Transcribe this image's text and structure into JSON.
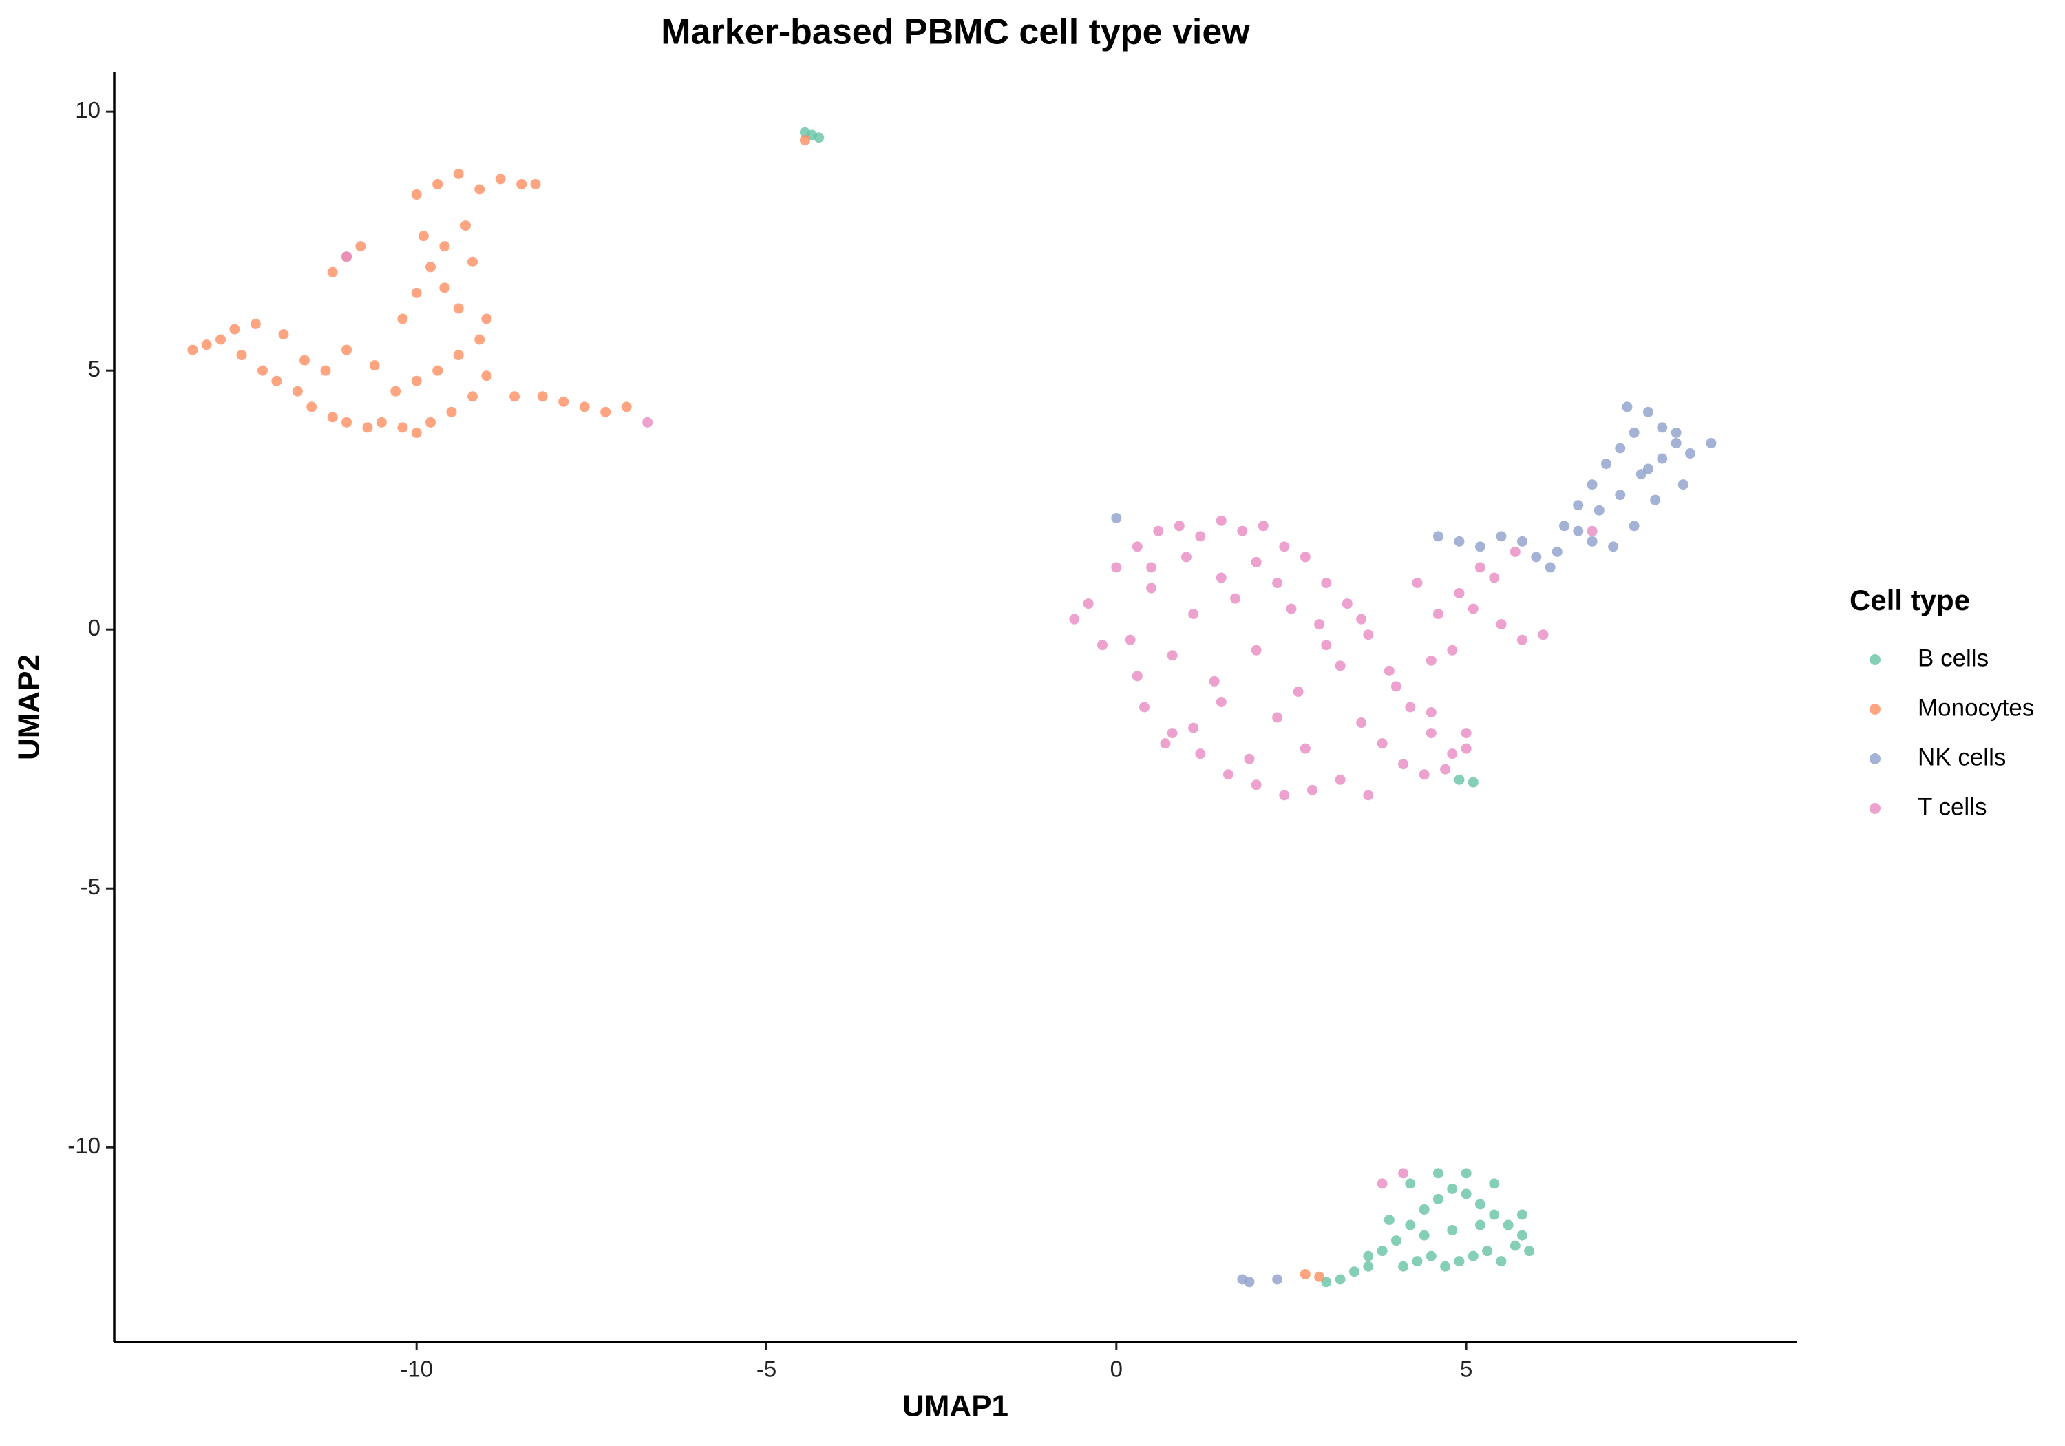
{
  "chart_data": {
    "type": "scatter",
    "title": "Marker-based PBMC cell type view",
    "x_label": "UMAP1",
    "y_label": "UMAP2",
    "legend_title": "Cell type",
    "legend": "right",
    "grid": false,
    "xlim": [
      -14.32,
      9.73
    ],
    "ylim": [
      -13.76,
      10.76
    ],
    "xticks": [
      -10,
      -5,
      0,
      5
    ],
    "yticks": [
      -10,
      -5,
      0,
      5,
      10
    ],
    "series": [
      {
        "name": "B cells",
        "color": "#66c2a5",
        "x": [
          -4.45,
          -4.35,
          -4.25,
          4.9,
          5.1,
          3.0,
          3.2,
          3.4,
          3.6,
          3.8,
          4.0,
          4.2,
          4.4,
          4.6,
          4.8,
          5.0,
          5.2,
          5.4,
          5.6,
          5.8,
          5.9,
          4.1,
          4.3,
          4.5,
          4.7,
          4.9,
          5.1,
          5.3,
          5.5,
          5.7,
          3.9,
          4.2,
          4.6,
          5.0,
          5.4,
          5.8,
          4.4,
          4.8,
          5.2,
          3.6
        ],
        "values": [
          9.6,
          9.55,
          9.5,
          -2.9,
          -2.95,
          -12.6,
          -12.55,
          -12.4,
          -12.3,
          -12.0,
          -11.8,
          -11.5,
          -11.2,
          -11.0,
          -10.8,
          -10.9,
          -11.1,
          -11.3,
          -11.5,
          -11.7,
          -12.0,
          -12.3,
          -12.2,
          -12.1,
          -12.3,
          -12.2,
          -12.1,
          -12.0,
          -12.2,
          -11.9,
          -11.4,
          -10.7,
          -10.5,
          -10.5,
          -10.7,
          -11.3,
          -11.7,
          -11.6,
          -11.5,
          -12.1
        ]
      },
      {
        "name": "Monocytes",
        "color": "#fc8d62",
        "x": [
          -13.2,
          -13.0,
          -12.8,
          -12.5,
          -12.2,
          -12.0,
          -11.7,
          -11.5,
          -11.2,
          -11.0,
          -10.7,
          -10.5,
          -10.2,
          -10.0,
          -9.8,
          -9.5,
          -9.2,
          -9.0,
          -12.6,
          -12.3,
          -11.9,
          -11.6,
          -11.3,
          -11.0,
          -10.6,
          -10.3,
          -10.0,
          -9.7,
          -9.4,
          -9.1,
          -10.2,
          -10.0,
          -9.8,
          -9.6,
          -9.4,
          -9.2,
          -9.0,
          -9.9,
          -9.6,
          -9.3,
          -10.0,
          -9.7,
          -9.4,
          -9.1,
          -8.8,
          -8.5,
          -8.3,
          -8.6,
          -8.2,
          -7.9,
          -7.6,
          -7.3,
          -7.0,
          -11.2,
          -11.0,
          -10.8,
          -4.45,
          2.7,
          2.9
        ],
        "values": [
          5.4,
          5.5,
          5.6,
          5.3,
          5.0,
          4.8,
          4.6,
          4.3,
          4.1,
          4.0,
          3.9,
          4.0,
          3.9,
          3.8,
          4.0,
          4.2,
          4.5,
          4.9,
          5.8,
          5.9,
          5.7,
          5.2,
          5.0,
          5.4,
          5.1,
          4.6,
          4.8,
          5.0,
          5.3,
          5.6,
          6.0,
          6.5,
          7.0,
          6.6,
          6.2,
          7.1,
          6.0,
          7.6,
          7.4,
          7.8,
          8.4,
          8.6,
          8.8,
          8.5,
          8.7,
          8.6,
          8.6,
          4.5,
          4.5,
          4.4,
          4.3,
          4.2,
          4.3,
          6.9,
          7.2,
          7.4,
          9.45,
          -12.45,
          -12.5
        ]
      },
      {
        "name": "NK cells",
        "color": "#8da0cb",
        "x": [
          0.0,
          4.6,
          4.9,
          5.2,
          5.5,
          5.8,
          6.0,
          6.2,
          6.4,
          6.6,
          6.8,
          7.0,
          7.2,
          7.4,
          7.6,
          7.8,
          8.0,
          8.2,
          8.5,
          6.3,
          6.6,
          6.9,
          7.2,
          7.5,
          7.8,
          8.1,
          6.8,
          7.1,
          7.4,
          7.7,
          8.0,
          7.3,
          7.6,
          1.8,
          1.9,
          2.3
        ],
        "values": [
          2.15,
          1.8,
          1.7,
          1.6,
          1.8,
          1.7,
          1.4,
          1.2,
          2.0,
          2.4,
          2.8,
          3.2,
          3.5,
          3.8,
          4.2,
          3.9,
          3.6,
          3.4,
          3.6,
          1.5,
          1.9,
          2.3,
          2.6,
          3.0,
          3.3,
          2.8,
          1.7,
          1.6,
          2.0,
          2.5,
          3.8,
          4.3,
          3.1,
          -12.55,
          -12.6,
          -12.55
        ]
      },
      {
        "name": "T cells",
        "color": "#e78ac3",
        "x": [
          -0.6,
          -0.4,
          -0.2,
          0.0,
          0.3,
          0.6,
          0.9,
          1.2,
          1.5,
          1.8,
          2.1,
          2.4,
          2.7,
          3.0,
          3.3,
          3.6,
          3.9,
          4.2,
          4.5,
          4.8,
          5.0,
          0.2,
          0.5,
          0.8,
          1.1,
          1.4,
          1.7,
          2.0,
          2.3,
          2.6,
          2.9,
          3.2,
          3.5,
          3.8,
          4.1,
          4.4,
          4.7,
          0.4,
          0.8,
          1.2,
          1.6,
          2.0,
          2.4,
          2.8,
          3.2,
          3.6,
          0.5,
          1.0,
          1.5,
          2.0,
          2.5,
          3.0,
          3.5,
          4.0,
          4.5,
          5.0,
          0.3,
          0.7,
          1.1,
          1.5,
          1.9,
          2.3,
          2.7,
          4.3,
          4.6,
          4.9,
          5.2,
          5.5,
          5.8,
          6.1,
          4.5,
          4.8,
          5.1,
          5.4,
          5.7,
          -11.0,
          -6.7,
          6.8,
          3.8,
          4.1
        ],
        "values": [
          0.2,
          0.5,
          -0.3,
          1.2,
          1.6,
          1.9,
          2.0,
          1.8,
          2.1,
          1.9,
          2.0,
          1.6,
          1.4,
          0.9,
          0.5,
          -0.1,
          -0.8,
          -1.5,
          -2.0,
          -2.4,
          -2.3,
          -0.2,
          0.8,
          -0.5,
          0.3,
          -1.0,
          0.6,
          -0.4,
          0.9,
          -1.2,
          0.1,
          -0.7,
          -1.8,
          -2.2,
          -2.6,
          -2.8,
          -2.7,
          -1.5,
          -2.0,
          -2.4,
          -2.8,
          -3.0,
          -3.2,
          -3.1,
          -2.9,
          -3.2,
          1.2,
          1.4,
          1.0,
          1.3,
          0.4,
          -0.3,
          0.2,
          -1.1,
          -1.6,
          -2.0,
          -0.9,
          -2.2,
          -1.9,
          -1.4,
          -2.5,
          -1.7,
          -2.3,
          0.9,
          0.3,
          0.7,
          1.2,
          0.1,
          -0.2,
          -0.1,
          -0.6,
          -0.4,
          0.4,
          1.0,
          1.5,
          7.2,
          4.0,
          1.9,
          -10.7,
          -10.5
        ]
      }
    ]
  }
}
